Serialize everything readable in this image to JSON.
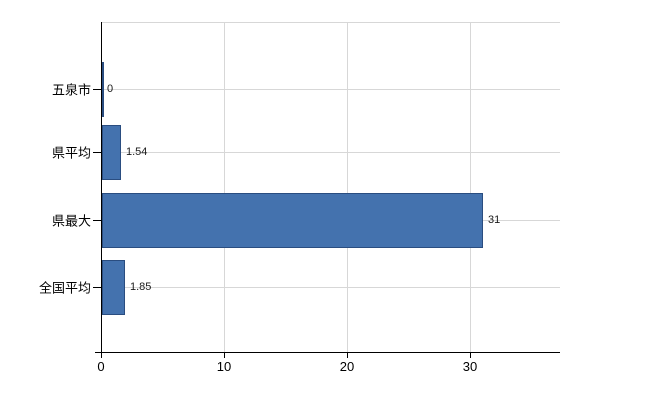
{
  "chart_data": {
    "type": "bar",
    "orientation": "horizontal",
    "title": "",
    "xlabel": "",
    "ylabel": "",
    "categories": [
      "五泉市",
      "県平均",
      "県最大",
      "全国平均"
    ],
    "values": [
      0,
      1.54,
      31,
      1.85
    ],
    "value_labels": [
      "0",
      "1.54",
      "31",
      "1.85"
    ],
    "x_ticks": [
      0,
      10,
      20,
      30
    ],
    "x_tick_labels": [
      "0",
      "10",
      "20",
      "30"
    ],
    "xlim": [
      0,
      37.3
    ],
    "grid": true,
    "legend": false,
    "bar_color": "#4472ae",
    "bar_border_color": "#2a4d80",
    "grid_color": "#d7d7d7",
    "axis_color": "#000000",
    "text_color": "#000000",
    "background_color": "#ffffff"
  }
}
